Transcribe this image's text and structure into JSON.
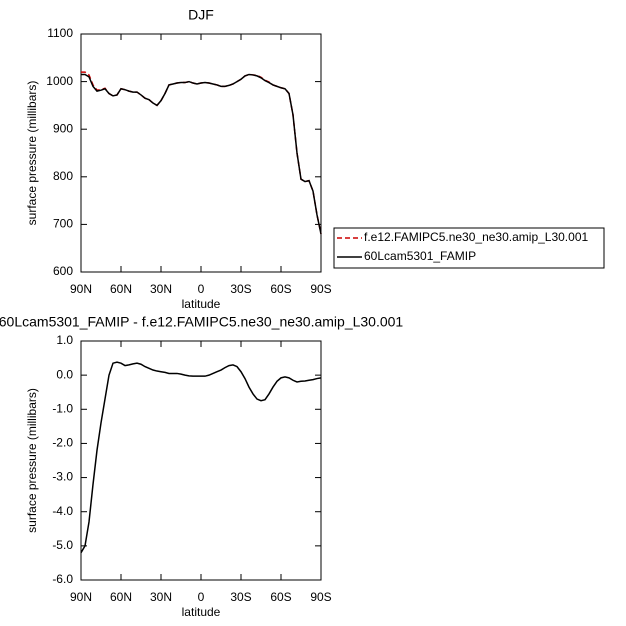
{
  "chart_data": [
    {
      "type": "line",
      "title": "DJF",
      "xlabel": "latitude",
      "ylabel": "surface pressure (millibars)",
      "x": [
        90,
        87,
        84,
        81,
        78,
        75,
        72,
        69,
        66,
        63,
        60,
        57,
        54,
        51,
        48,
        45,
        42,
        39,
        36,
        33,
        30,
        27,
        24,
        21,
        18,
        15,
        12,
        9,
        6,
        3,
        0,
        -3,
        -6,
        -9,
        -12,
        -15,
        -18,
        -21,
        -24,
        -27,
        -30,
        -33,
        -36,
        -39,
        -42,
        -45,
        -48,
        -51,
        -54,
        -57,
        -60,
        -63,
        -66,
        -69,
        -72,
        -75,
        -78,
        -81,
        -84,
        -87,
        -90
      ],
      "xlim": [
        90,
        -90
      ],
      "xticks": [
        {
          "value": 90,
          "label": "90N"
        },
        {
          "value": 60,
          "label": "60N"
        },
        {
          "value": 30,
          "label": "30N"
        },
        0,
        {
          "value": -30,
          "label": "30S"
        },
        {
          "value": -60,
          "label": "60S"
        },
        {
          "value": -90,
          "label": "90S"
        }
      ],
      "ylim": [
        600,
        1100
      ],
      "yticks": [
        600,
        700,
        800,
        900,
        1000,
        1100
      ],
      "legend": "right",
      "series": [
        {
          "name": "f.e12.FAMIPC5.ne30_ne30.amip_L30.001",
          "color": "#cc0000",
          "dash": true,
          "values": [
            1020,
            1020,
            1014,
            993,
            982,
            983,
            986,
            975,
            970,
            972,
            985,
            983,
            980,
            978,
            978,
            972,
            965,
            962,
            955,
            950,
            960,
            975,
            993,
            995,
            997,
            998,
            998,
            1000,
            997,
            995,
            997,
            998,
            997,
            995,
            993,
            990,
            990,
            992,
            995,
            1000,
            1005,
            1012,
            1015,
            1014,
            1013,
            1009,
            1003,
            999,
            993,
            990,
            987,
            985,
            975,
            930,
            850,
            795,
            790,
            792,
            770,
            720,
            680
          ]
        },
        {
          "name": "60Lcam5301_FAMIP",
          "color": "#000000",
          "dash": false,
          "values": [
            1015,
            1015,
            1010,
            990,
            980,
            982,
            985,
            975,
            970,
            972,
            985,
            983,
            980,
            978,
            978,
            972,
            965,
            962,
            955,
            950,
            960,
            975,
            993,
            995,
            997,
            998,
            998,
            1000,
            997,
            995,
            997,
            998,
            997,
            995,
            993,
            990,
            990,
            992,
            995,
            1000,
            1005,
            1012,
            1015,
            1014,
            1012,
            1008,
            1002,
            998,
            993,
            990,
            987,
            985,
            975,
            930,
            850,
            795,
            790,
            792,
            770,
            720,
            680
          ]
        }
      ]
    },
    {
      "type": "line",
      "title": "60Lcam5301_FAMIP - f.e12.FAMIPC5.ne30_ne30.amip_L30.001",
      "xlabel": "latitude",
      "ylabel": "surface pressure (millibars)",
      "x": [
        90,
        87,
        84,
        81,
        78,
        75,
        72,
        69,
        66,
        63,
        60,
        57,
        54,
        51,
        48,
        45,
        42,
        39,
        36,
        33,
        30,
        27,
        24,
        21,
        18,
        15,
        12,
        9,
        6,
        3,
        0,
        -3,
        -6,
        -9,
        -12,
        -15,
        -18,
        -21,
        -24,
        -27,
        -30,
        -33,
        -36,
        -39,
        -42,
        -45,
        -48,
        -51,
        -54,
        -57,
        -60,
        -63,
        -66,
        -69,
        -72,
        -75,
        -78,
        -81,
        -84,
        -87,
        -90
      ],
      "xlim": [
        90,
        -90
      ],
      "xticks": [
        {
          "value": 90,
          "label": "90N"
        },
        {
          "value": 60,
          "label": "60N"
        },
        {
          "value": 30,
          "label": "30N"
        },
        0,
        {
          "value": -30,
          "label": "30S"
        },
        {
          "value": -60,
          "label": "60S"
        },
        {
          "value": -90,
          "label": "90S"
        }
      ],
      "ylim": [
        -6,
        1
      ],
      "yticks": [
        {
          "value": -6,
          "label": "-6.0"
        },
        {
          "value": -5,
          "label": "-5.0"
        },
        {
          "value": -4,
          "label": "-4.0"
        },
        {
          "value": -3,
          "label": "-3.0"
        },
        {
          "value": -2,
          "label": "-2.0"
        },
        {
          "value": -1,
          "label": "-1.0"
        },
        {
          "value": 0,
          "label": "0.0"
        },
        {
          "value": 1,
          "label": "1.0"
        }
      ],
      "series": [
        {
          "color": "#000000",
          "dash": false,
          "values": [
            -5.2,
            -5.0,
            -4.3,
            -3.2,
            -2.2,
            -1.4,
            -0.7,
            0.0,
            0.35,
            0.38,
            0.35,
            0.28,
            0.3,
            0.33,
            0.35,
            0.32,
            0.25,
            0.2,
            0.15,
            0.12,
            0.1,
            0.08,
            0.05,
            0.05,
            0.05,
            0.03,
            0.0,
            -0.02,
            -0.03,
            -0.03,
            -0.03,
            -0.03,
            0.0,
            0.05,
            0.1,
            0.15,
            0.22,
            0.28,
            0.3,
            0.25,
            0.1,
            -0.1,
            -0.35,
            -0.55,
            -0.7,
            -0.75,
            -0.72,
            -0.55,
            -0.35,
            -0.18,
            -0.08,
            -0.05,
            -0.08,
            -0.15,
            -0.2,
            -0.18,
            -0.17,
            -0.15,
            -0.13,
            -0.1,
            -0.08
          ]
        }
      ]
    }
  ]
}
